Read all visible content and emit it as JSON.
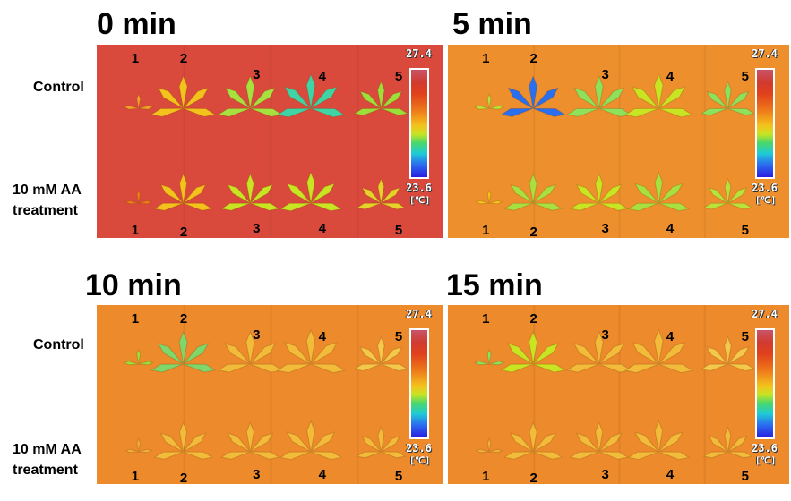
{
  "panels": [
    {
      "title": "0 min",
      "bg": "#d94a3c",
      "top_numbers": [
        "1",
        "2",
        "3",
        "4",
        "5"
      ],
      "bottom_numbers": [
        "1",
        "2",
        "3",
        "4",
        "5"
      ],
      "scale_max": "27.4",
      "scale_min": "23.6",
      "scale_unit": "[℃]"
    },
    {
      "title": "5 min",
      "bg": "#ee8f2e",
      "top_numbers": [
        "1",
        "2",
        "3",
        "4",
        "5"
      ],
      "bottom_numbers": [
        "1",
        "2",
        "3",
        "4",
        "5"
      ],
      "scale_max": "27.4",
      "scale_min": "23.6",
      "scale_unit": "[℃]"
    },
    {
      "title": "10 min",
      "bg": "#ec8a2c",
      "top_numbers": [
        "1",
        "2",
        "3",
        "4",
        "5"
      ],
      "bottom_numbers": [
        "1",
        "2",
        "3",
        "4",
        "5"
      ],
      "scale_max": "27.4",
      "scale_min": "23.6",
      "scale_unit": "[℃]"
    },
    {
      "title": "15 min",
      "bg": "#ec8a2c",
      "top_numbers": [
        "1",
        "2",
        "3",
        "4",
        "5"
      ],
      "bottom_numbers": [
        "1",
        "2",
        "3",
        "4",
        "5"
      ],
      "scale_max": "27.4",
      "scale_min": "23.6",
      "scale_unit": "[℃]"
    }
  ],
  "row_labels": {
    "control": "Control",
    "treatment_line1": "10 mM AA",
    "treatment_line2": "treatment"
  },
  "colors": {
    "hot": "#d13a2e",
    "warm": "#ee8f2e",
    "mid": "#f4c21c",
    "cool": "#4ad86a",
    "cold": "#2a6ff0"
  }
}
